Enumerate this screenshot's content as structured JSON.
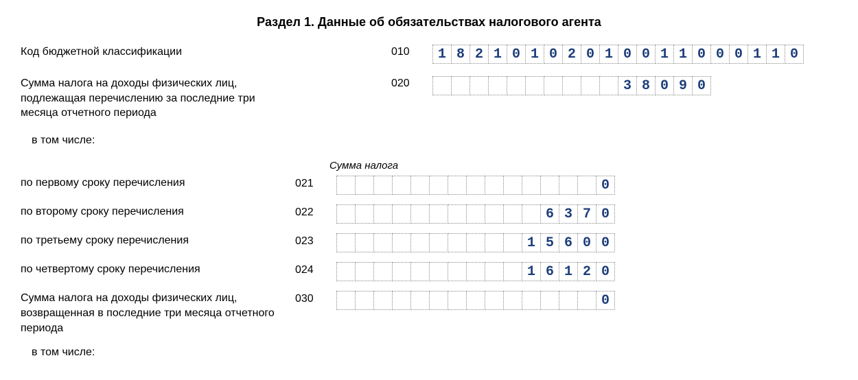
{
  "title": "Раздел 1. Данные об обязательствах налогового агента",
  "digit_color": "#1d3e7a",
  "top": {
    "r010": {
      "label": "Код бюджетной классификации",
      "code": "010",
      "cells": 20,
      "value": "18210102010011000110"
    },
    "r020": {
      "label": "Сумма налога на доходы физических лиц, подлежащая перечислению за последние три месяца отчетного периода",
      "code": "020",
      "cells": 15,
      "value": "38090"
    },
    "lead_gap": 5
  },
  "including_label": "в том числе:",
  "sub_header": "Сумма налога",
  "sub": {
    "cells": 15,
    "rows": [
      {
        "label": "по первому сроку перечисления",
        "code": "021",
        "value": "0"
      },
      {
        "label": "по второму сроку перечисления",
        "code": "022",
        "value": "6370"
      },
      {
        "label": "по третьему сроку перечисления",
        "code": "023",
        "value": "15600"
      },
      {
        "label": "по четвертому сроку перечисления",
        "code": "024",
        "value": "16120"
      },
      {
        "label": "Сумма налога на доходы физических лиц, возвращенная в последние три месяца отчетного периода",
        "code": "030",
        "value": "0"
      }
    ]
  },
  "including_label_2": "в том числе:"
}
